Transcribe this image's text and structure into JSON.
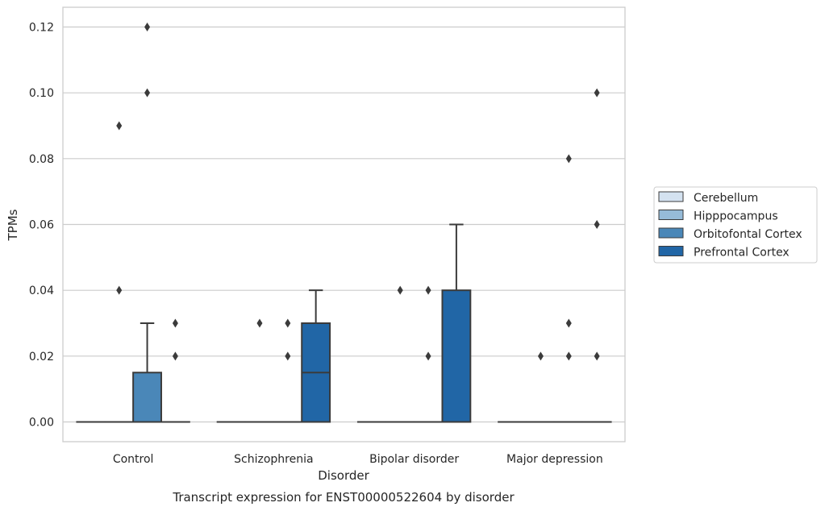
{
  "chart_data": {
    "type": "box",
    "title": "",
    "caption": "Transcript expression for ENST00000522604 by disorder",
    "xlabel": "Disorder",
    "ylabel": "TPMs",
    "ylim": [
      -0.006,
      0.126
    ],
    "yticks": [
      0.0,
      0.02,
      0.04,
      0.06,
      0.08,
      0.1,
      0.12
    ],
    "ytick_labels": [
      "0.00",
      "0.02",
      "0.04",
      "0.06",
      "0.08",
      "0.10",
      "0.12"
    ],
    "grid": "horizontal",
    "legend_position": "right",
    "categories": [
      "Control",
      "Schizophrenia",
      "Bipolar disorder",
      "Major depression"
    ],
    "series": [
      {
        "name": "Cerebellum",
        "color": "#d4e2f0",
        "boxes": [
          {
            "q1": 0,
            "median": 0,
            "q3": 0,
            "whisker_low": 0,
            "whisker_high": 0,
            "outliers": []
          },
          {
            "q1": 0,
            "median": 0,
            "q3": 0,
            "whisker_low": 0,
            "whisker_high": 0,
            "outliers": []
          },
          {
            "q1": 0,
            "median": 0,
            "q3": 0,
            "whisker_low": 0,
            "whisker_high": 0,
            "outliers": []
          },
          {
            "q1": 0,
            "median": 0,
            "q3": 0,
            "whisker_low": 0,
            "whisker_high": 0,
            "outliers": []
          }
        ]
      },
      {
        "name": "Hipppocampus",
        "color": "#96bbd8",
        "boxes": [
          {
            "q1": 0,
            "median": 0,
            "q3": 0,
            "whisker_low": 0,
            "whisker_high": 0,
            "outliers": [
              0.09,
              0.04
            ]
          },
          {
            "q1": 0,
            "median": 0,
            "q3": 0,
            "whisker_low": 0,
            "whisker_high": 0,
            "outliers": [
              0.03
            ]
          },
          {
            "q1": 0,
            "median": 0,
            "q3": 0,
            "whisker_low": 0,
            "whisker_high": 0,
            "outliers": [
              0.04
            ]
          },
          {
            "q1": 0,
            "median": 0,
            "q3": 0,
            "whisker_low": 0,
            "whisker_high": 0,
            "outliers": [
              0.02
            ]
          }
        ]
      },
      {
        "name": "Orbitofontal Cortex",
        "color": "#4a87b8",
        "boxes": [
          {
            "q1": 0,
            "median": 0,
            "q3": 0.015,
            "whisker_low": 0,
            "whisker_high": 0.03,
            "outliers": [
              0.12,
              0.1
            ]
          },
          {
            "q1": 0,
            "median": 0,
            "q3": 0,
            "whisker_low": 0,
            "whisker_high": 0,
            "outliers": [
              0.03,
              0.02
            ]
          },
          {
            "q1": 0,
            "median": 0,
            "q3": 0,
            "whisker_low": 0,
            "whisker_high": 0,
            "outliers": [
              0.04,
              0.02
            ]
          },
          {
            "q1": 0,
            "median": 0,
            "q3": 0,
            "whisker_low": 0,
            "whisker_high": 0,
            "outliers": [
              0.08,
              0.03,
              0.02
            ]
          }
        ]
      },
      {
        "name": "Prefrontal Cortex",
        "color": "#2166a6",
        "boxes": [
          {
            "q1": 0,
            "median": 0,
            "q3": 0,
            "whisker_low": 0,
            "whisker_high": 0,
            "outliers": [
              0.03,
              0.02
            ]
          },
          {
            "q1": 0,
            "median": 0.015,
            "q3": 0.03,
            "whisker_low": 0,
            "whisker_high": 0.04,
            "outliers": []
          },
          {
            "q1": 0,
            "median": 0,
            "q3": 0.04,
            "whisker_low": 0,
            "whisker_high": 0.06,
            "outliers": []
          },
          {
            "q1": 0,
            "median": 0,
            "q3": 0,
            "whisker_low": 0,
            "whisker_high": 0,
            "outliers": [
              0.1,
              0.06,
              0.02
            ]
          }
        ]
      }
    ]
  }
}
